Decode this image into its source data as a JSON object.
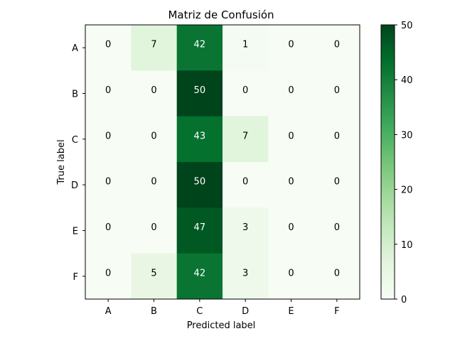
{
  "chart_data": {
    "type": "heatmap",
    "title": "Matriz de Confusión",
    "xlabel": "Predicted label",
    "ylabel": "True label",
    "x_categories": [
      "A",
      "B",
      "C",
      "D",
      "E",
      "F"
    ],
    "y_categories": [
      "A",
      "B",
      "C",
      "D",
      "E",
      "F"
    ],
    "values": [
      [
        0,
        7,
        42,
        1,
        0,
        0
      ],
      [
        0,
        0,
        50,
        0,
        0,
        0
      ],
      [
        0,
        0,
        43,
        7,
        0,
        0
      ],
      [
        0,
        0,
        50,
        0,
        0,
        0
      ],
      [
        0,
        0,
        47,
        3,
        0,
        0
      ],
      [
        0,
        5,
        42,
        3,
        0,
        0
      ]
    ],
    "colormap": "Greens",
    "color_range": [
      0,
      50
    ],
    "colorbar": {
      "ticks": [
        "0",
        "10",
        "20",
        "30",
        "40",
        "50"
      ],
      "placement": "right"
    },
    "grid": false
  }
}
